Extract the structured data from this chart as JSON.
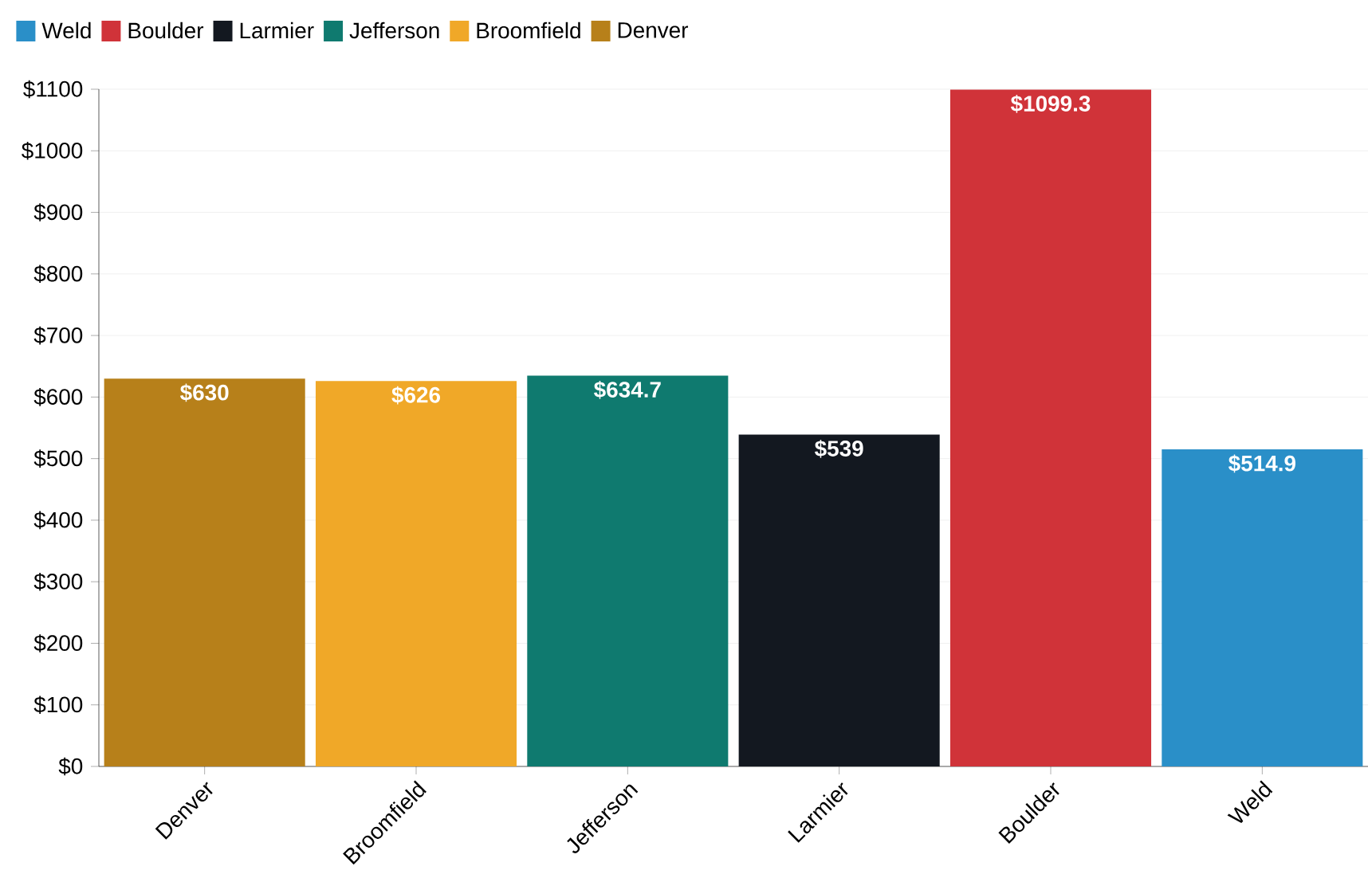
{
  "chart_data": {
    "type": "bar",
    "categories": [
      "Denver",
      "Broomfield",
      "Jefferson",
      "Larmier",
      "Boulder",
      "Weld"
    ],
    "series": [
      {
        "name": "Denver",
        "color": "#b7801a",
        "values": [
          630,
          null,
          null,
          null,
          null,
          null
        ],
        "value_labels": [
          "$630",
          null,
          null,
          null,
          null,
          null
        ]
      },
      {
        "name": "Broomfield",
        "color": "#f0a828",
        "values": [
          null,
          626,
          null,
          null,
          null,
          null
        ],
        "value_labels": [
          null,
          "$626",
          null,
          null,
          null,
          null
        ]
      },
      {
        "name": "Jefferson",
        "color": "#0f7a6f",
        "values": [
          null,
          null,
          634.7,
          null,
          null,
          null
        ],
        "value_labels": [
          null,
          null,
          "$634.7",
          null,
          null,
          null
        ]
      },
      {
        "name": "Larmier",
        "color": "#131820",
        "values": [
          null,
          null,
          null,
          539,
          null,
          null
        ],
        "value_labels": [
          null,
          null,
          null,
          "$539",
          null,
          null
        ]
      },
      {
        "name": "Boulder",
        "color": "#d03339",
        "values": [
          null,
          null,
          null,
          null,
          1099.3,
          null
        ],
        "value_labels": [
          null,
          null,
          null,
          null,
          "$1099.3",
          null
        ]
      },
      {
        "name": "Weld",
        "color": "#2a8fc8",
        "values": [
          null,
          null,
          null,
          null,
          null,
          514.9
        ],
        "value_labels": [
          null,
          null,
          null,
          null,
          null,
          "$514.9"
        ]
      }
    ],
    "ylim": [
      0,
      1100
    ],
    "yticks": [
      {
        "value": 0,
        "label": "$0"
      },
      {
        "value": 100,
        "label": "$100"
      },
      {
        "value": 200,
        "label": "$200"
      },
      {
        "value": 300,
        "label": "$300"
      },
      {
        "value": 400,
        "label": "$400"
      },
      {
        "value": 500,
        "label": "$500"
      },
      {
        "value": 600,
        "label": "$600"
      },
      {
        "value": 700,
        "label": "$700"
      },
      {
        "value": 800,
        "label": "$800"
      },
      {
        "value": 900,
        "label": "$900"
      },
      {
        "value": 1000,
        "label": "$1000"
      },
      {
        "value": 1100,
        "label": "$1100"
      }
    ],
    "grid": "y",
    "legend": "top left"
  }
}
